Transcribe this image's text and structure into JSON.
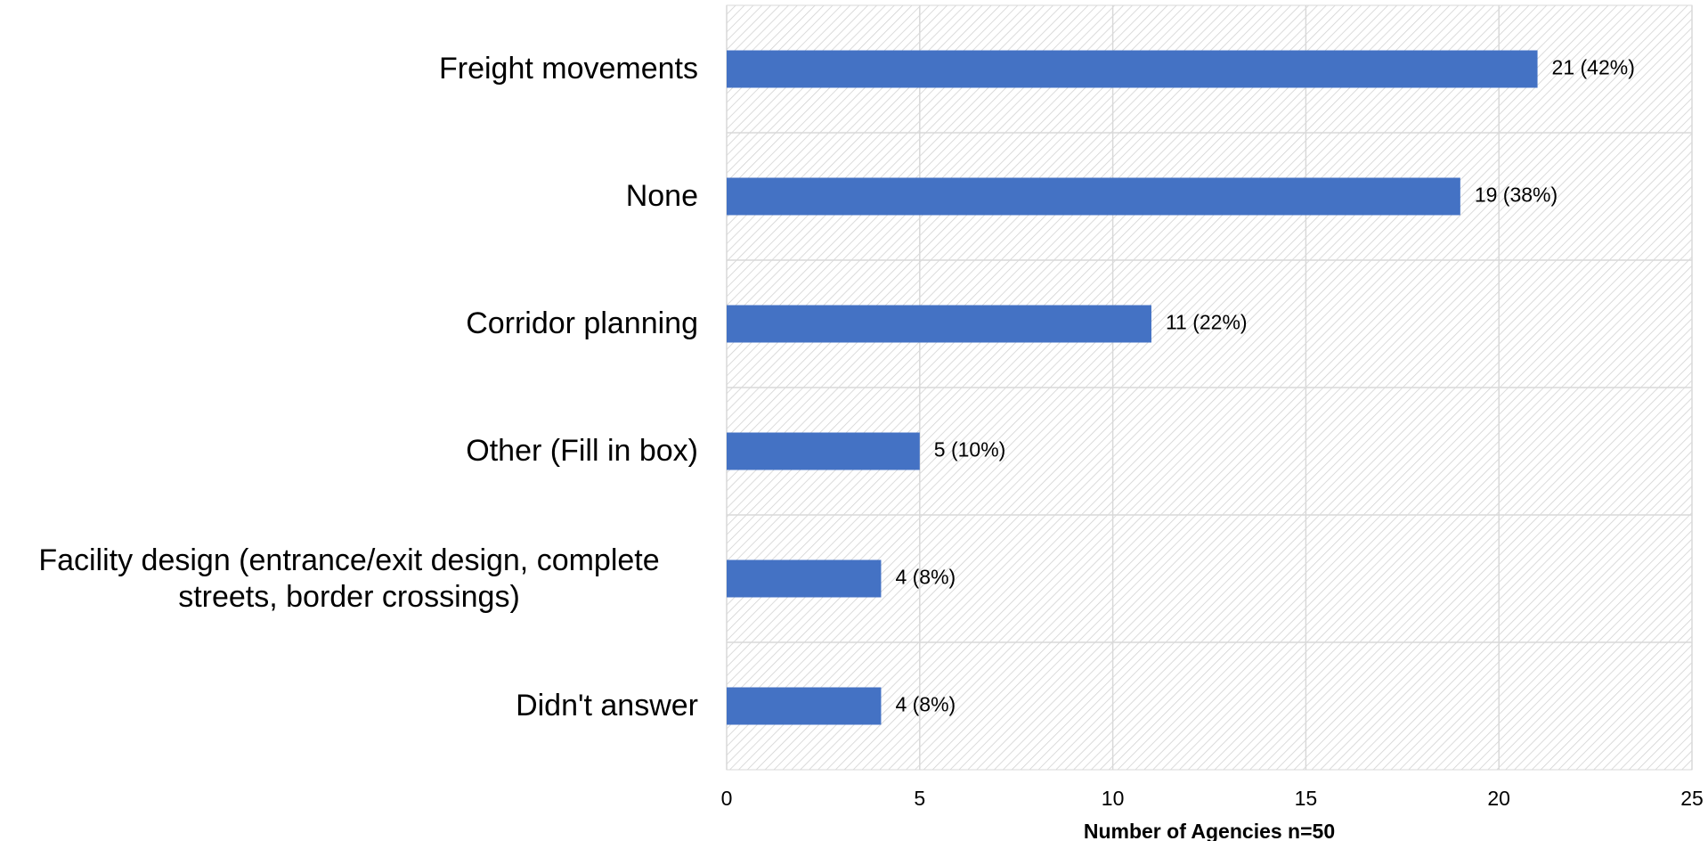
{
  "chart_data": {
    "type": "barh",
    "categories": [
      "Freight movements",
      "None",
      "Corridor planning",
      "Other (Fill in box)",
      "Facility design (entrance/exit design, complete streets, border crossings)",
      "Didn't answer"
    ],
    "values": [
      21,
      19,
      11,
      5,
      4,
      4
    ],
    "value_labels": [
      "21 (42%)",
      "19 (38%)",
      "11 (22%)",
      "5 (10%)",
      "4 (8%)",
      "4 (8%)"
    ],
    "color": "#4472c4",
    "xlabel": "Number of Agencies  n=50",
    "xlim": [
      0,
      25
    ],
    "xticks": [
      0,
      5,
      10,
      15,
      20,
      25
    ],
    "grid": true
  }
}
